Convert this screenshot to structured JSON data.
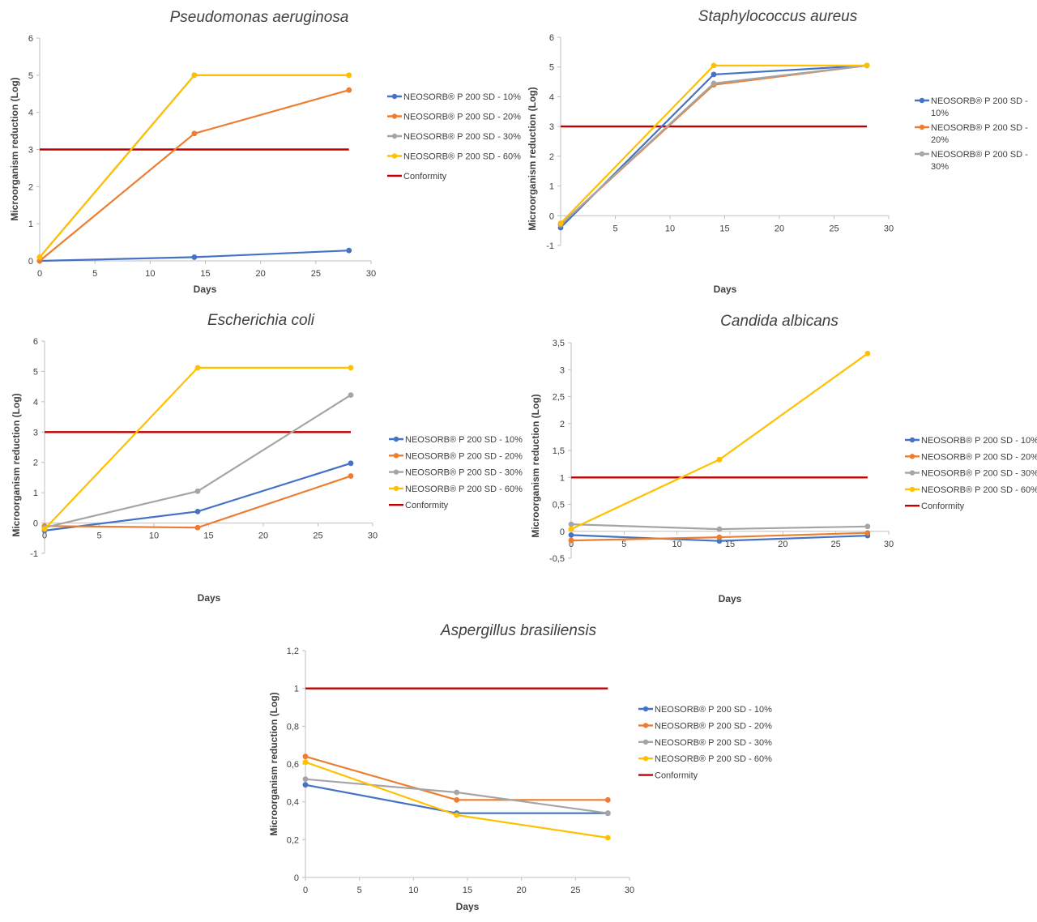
{
  "colors": {
    "s10": "#4472C4",
    "s20": "#ED7D31",
    "s30": "#A5A5A5",
    "s60": "#FFC000",
    "conformity": "#C00000",
    "axis": "#bfbfbf",
    "text": "#404040"
  },
  "chart_data": [
    {
      "type": "line",
      "title": "Pseudomonas aeruginosa",
      "xlabel": "Days",
      "ylabel": "Microorganism reduction (Log)",
      "xlim": [
        0,
        30
      ],
      "ylim": [
        0,
        6
      ],
      "xticks": [
        "0",
        "5",
        "10",
        "15",
        "20",
        "25",
        "30"
      ],
      "yticks": [
        "0",
        "1",
        "2",
        "3",
        "4",
        "5",
        "6"
      ],
      "legend_position": "right",
      "series": [
        {
          "name": "NEOSORB® P 200 SD - 10%",
          "color_key": "s10",
          "x": [
            0,
            14,
            28
          ],
          "values": [
            0,
            0.1,
            0.28
          ]
        },
        {
          "name": "NEOSORB® P 200 SD - 20%",
          "color_key": "s20",
          "x": [
            0,
            14,
            28
          ],
          "values": [
            0,
            3.43,
            4.6
          ]
        },
        {
          "name": "NEOSORB® P 200 SD - 30%",
          "color_key": "s30",
          "x": [
            0,
            14,
            28
          ],
          "values": [
            0.1,
            5.0,
            5.0
          ]
        },
        {
          "name": "NEOSORB® P 200 SD - 60%",
          "color_key": "s60",
          "x": [
            0,
            14,
            28
          ],
          "values": [
            0.1,
            5.0,
            5.0
          ]
        },
        {
          "name": "Conformity",
          "color_key": "conformity",
          "x": [
            0,
            28
          ],
          "values": [
            3,
            3
          ],
          "line_only": true
        }
      ]
    },
    {
      "type": "line",
      "title": "Staphylococcus aureus",
      "xlabel": "Days",
      "ylabel": "Microorganism reduction (Log)",
      "xlim": [
        0,
        30
      ],
      "ylim": [
        -1,
        6
      ],
      "xticks": [
        "5",
        "10",
        "15",
        "20",
        "25",
        "30"
      ],
      "yticks": [
        "-1",
        "0",
        "1",
        "2",
        "3",
        "4",
        "5",
        "6"
      ],
      "legend_position": "right",
      "series": [
        {
          "name": "NEOSORB® P 200 SD - 10%",
          "color_key": "s10",
          "x": [
            0,
            14,
            28
          ],
          "values": [
            -0.4,
            4.75,
            5.05
          ]
        },
        {
          "name": "NEOSORB® P 200 SD - 20%",
          "color_key": "s20",
          "x": [
            0,
            14,
            28
          ],
          "values": [
            -0.3,
            4.4,
            5.05
          ]
        },
        {
          "name": "NEOSORB® P 200 SD - 30%",
          "color_key": "s30",
          "x": [
            0,
            14,
            28
          ],
          "values": [
            -0.3,
            4.45,
            5.05
          ]
        },
        {
          "color_key": "s60",
          "x": [
            0,
            14,
            28
          ],
          "values": [
            -0.25,
            5.05,
            5.05
          ]
        },
        {
          "color_key": "conformity",
          "x": [
            0,
            28
          ],
          "values": [
            3,
            3
          ],
          "line_only": true
        }
      ]
    },
    {
      "type": "line",
      "title": "Escherichia coli",
      "xlabel": "Days",
      "ylabel": "Microorganism reduction (Log)",
      "xlim": [
        0,
        30
      ],
      "ylim": [
        -1,
        6
      ],
      "xticks": [
        "0",
        "5",
        "10",
        "15",
        "20",
        "25",
        "30"
      ],
      "yticks": [
        "-1",
        "0",
        "1",
        "2",
        "3",
        "4",
        "5",
        "6"
      ],
      "legend_position": "right",
      "series": [
        {
          "name": "NEOSORB® P 200 SD - 10%",
          "color_key": "s10",
          "x": [
            0,
            14,
            28
          ],
          "values": [
            -0.25,
            0.38,
            1.97
          ]
        },
        {
          "name": "NEOSORB® P 200 SD - 20%",
          "color_key": "s20",
          "x": [
            0,
            14,
            28
          ],
          "values": [
            -0.1,
            -0.15,
            1.55
          ]
        },
        {
          "name": "NEOSORB® P 200 SD - 30%",
          "color_key": "s30",
          "x": [
            0,
            14,
            28
          ],
          "values": [
            -0.15,
            1.05,
            4.22
          ]
        },
        {
          "name": "NEOSORB® P 200 SD - 60%",
          "color_key": "s60",
          "x": [
            0,
            14,
            28
          ],
          "values": [
            -0.2,
            5.12,
            5.12
          ]
        },
        {
          "name": "Conformity",
          "color_key": "conformity",
          "x": [
            0,
            28
          ],
          "values": [
            3,
            3
          ],
          "line_only": true
        }
      ]
    },
    {
      "type": "line",
      "title": "Candida albicans",
      "xlabel": "Days",
      "ylabel": "Microorganism reduction (Log)",
      "xlim": [
        0,
        30
      ],
      "ylim": [
        -0.5,
        3.5
      ],
      "xticks": [
        "0",
        "5",
        "10",
        "15",
        "20",
        "25",
        "30"
      ],
      "yticks": [
        "-0,5",
        "0",
        "0,5",
        "1",
        "1,5",
        "2",
        "2,5",
        "3",
        "3,5"
      ],
      "legend_position": "right",
      "series": [
        {
          "name": "NEOSORB® P 200 SD - 10%",
          "color_key": "s10",
          "x": [
            0,
            14,
            28
          ],
          "values": [
            -0.07,
            -0.18,
            -0.08
          ]
        },
        {
          "name": "NEOSORB® P 200 SD - 20%",
          "color_key": "s20",
          "x": [
            0,
            14,
            28
          ],
          "values": [
            -0.17,
            -0.11,
            -0.03
          ]
        },
        {
          "name": "NEOSORB® P 200 SD - 30%",
          "color_key": "s30",
          "x": [
            0,
            14,
            28
          ],
          "values": [
            0.13,
            0.04,
            0.09
          ]
        },
        {
          "name": "NEOSORB® P 200 SD - 60%",
          "color_key": "s60",
          "x": [
            0,
            14,
            28
          ],
          "values": [
            0.04,
            1.33,
            3.3
          ]
        },
        {
          "name": "Conformity",
          "color_key": "conformity",
          "x": [
            0,
            28
          ],
          "values": [
            1,
            1
          ],
          "line_only": true
        }
      ]
    },
    {
      "type": "line",
      "title": "Aspergillus brasiliensis",
      "xlabel": "Days",
      "ylabel": "Microorganism reduction (Log)",
      "xlim": [
        0,
        30
      ],
      "ylim": [
        0,
        1.2
      ],
      "xticks": [
        "0",
        "5",
        "10",
        "15",
        "20",
        "25",
        "30"
      ],
      "yticks": [
        "0",
        "0,2",
        "0,4",
        "0,6",
        "0,8",
        "1",
        "1,2"
      ],
      "legend_position": "right",
      "series": [
        {
          "name": "NEOSORB® P 200 SD - 10%",
          "color_key": "s10",
          "x": [
            0,
            14,
            28
          ],
          "values": [
            0.49,
            0.34,
            0.34
          ]
        },
        {
          "name": "NEOSORB® P 200 SD - 20%",
          "color_key": "s20",
          "x": [
            0,
            14,
            28
          ],
          "values": [
            0.64,
            0.41,
            0.41
          ]
        },
        {
          "name": "NEOSORB® P 200 SD - 30%",
          "color_key": "s30",
          "x": [
            0,
            14,
            28
          ],
          "values": [
            0.52,
            0.45,
            0.34
          ]
        },
        {
          "name": "NEOSORB® P 200 SD - 60%",
          "color_key": "s60",
          "x": [
            0,
            14,
            28
          ],
          "values": [
            0.61,
            0.33,
            0.21
          ]
        },
        {
          "name": "Conformity",
          "color_key": "conformity",
          "x": [
            0,
            28
          ],
          "values": [
            1,
            1
          ],
          "line_only": true
        }
      ]
    }
  ]
}
